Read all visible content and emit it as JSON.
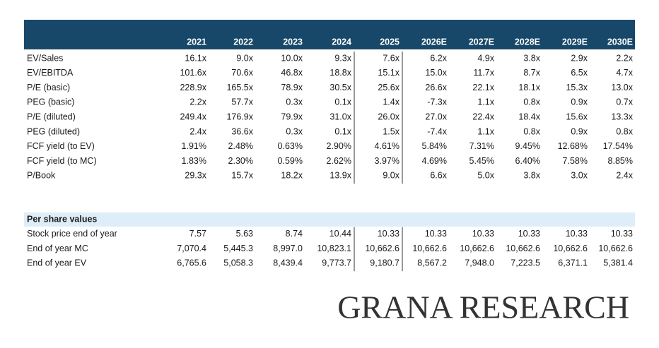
{
  "table": {
    "columns": [
      "2021",
      "2022",
      "2023",
      "2024",
      "2025",
      "2026E",
      "2027E",
      "2028E",
      "2029E",
      "2030E"
    ],
    "sections": [
      {
        "rows": [
          {
            "label": "EV/Sales",
            "values": [
              "16.1x",
              "9.0x",
              "10.0x",
              "9.3x",
              "7.6x",
              "6.2x",
              "4.9x",
              "3.8x",
              "2.9x",
              "2.2x"
            ]
          },
          {
            "label": "EV/EBITDA",
            "values": [
              "101.6x",
              "70.6x",
              "46.8x",
              "18.8x",
              "15.1x",
              "15.0x",
              "11.7x",
              "8.7x",
              "6.5x",
              "4.7x"
            ]
          },
          {
            "label": "P/E (basic)",
            "values": [
              "228.9x",
              "165.5x",
              "78.9x",
              "30.5x",
              "25.6x",
              "26.6x",
              "22.1x",
              "18.1x",
              "15.3x",
              "13.0x"
            ]
          },
          {
            "label": "PEG (basic)",
            "values": [
              "2.2x",
              "57.7x",
              "0.3x",
              "0.1x",
              "1.4x",
              "-7.3x",
              "1.1x",
              "0.8x",
              "0.9x",
              "0.7x"
            ]
          },
          {
            "label": "P/E (diluted)",
            "values": [
              "249.4x",
              "176.9x",
              "79.9x",
              "31.0x",
              "26.0x",
              "27.0x",
              "22.4x",
              "18.4x",
              "15.6x",
              "13.3x"
            ]
          },
          {
            "label": "PEG (diluted)",
            "values": [
              "2.4x",
              "36.6x",
              "0.3x",
              "0.1x",
              "1.5x",
              "-7.4x",
              "1.1x",
              "0.8x",
              "0.9x",
              "0.8x"
            ]
          },
          {
            "label": "FCF yield (to EV)",
            "values": [
              "1.91%",
              "2.48%",
              "0.63%",
              "2.90%",
              "4.61%",
              "5.84%",
              "7.31%",
              "9.45%",
              "12.68%",
              "17.54%"
            ]
          },
          {
            "label": "FCF yield (to MC)",
            "values": [
              "1.83%",
              "2.30%",
              "0.59%",
              "2.62%",
              "3.97%",
              "4.69%",
              "5.45%",
              "6.40%",
              "7.58%",
              "8.85%"
            ]
          },
          {
            "label": "P/Book",
            "values": [
              "29.3x",
              "15.7x",
              "18.2x",
              "13.9x",
              "9.0x",
              "6.6x",
              "5.0x",
              "3.8x",
              "3.0x",
              "2.4x"
            ]
          }
        ]
      },
      {
        "title": "Per share values",
        "rows": [
          {
            "label": "Stock price end of year",
            "values": [
              "7.57",
              "5.63",
              "8.74",
              "10.44",
              "10.33",
              "10.33",
              "10.33",
              "10.33",
              "10.33",
              "10.33"
            ]
          },
          {
            "label": "End of year MC",
            "values": [
              "7,070.4",
              "5,445.3",
              "8,997.0",
              "10,823.1",
              "10,662.6",
              "10,662.6",
              "10,662.6",
              "10,662.6",
              "10,662.6",
              "10,662.6"
            ]
          },
          {
            "label": "End of year EV",
            "values": [
              "6,765.6",
              "5,058.3",
              "8,439.4",
              "9,773.7",
              "9,180.7",
              "8,567.2",
              "7,948.0",
              "7,223.5",
              "6,371.1",
              "5,381.4"
            ]
          }
        ]
      }
    ]
  },
  "footer": {
    "brand": "GRANA RESEARCH"
  }
}
